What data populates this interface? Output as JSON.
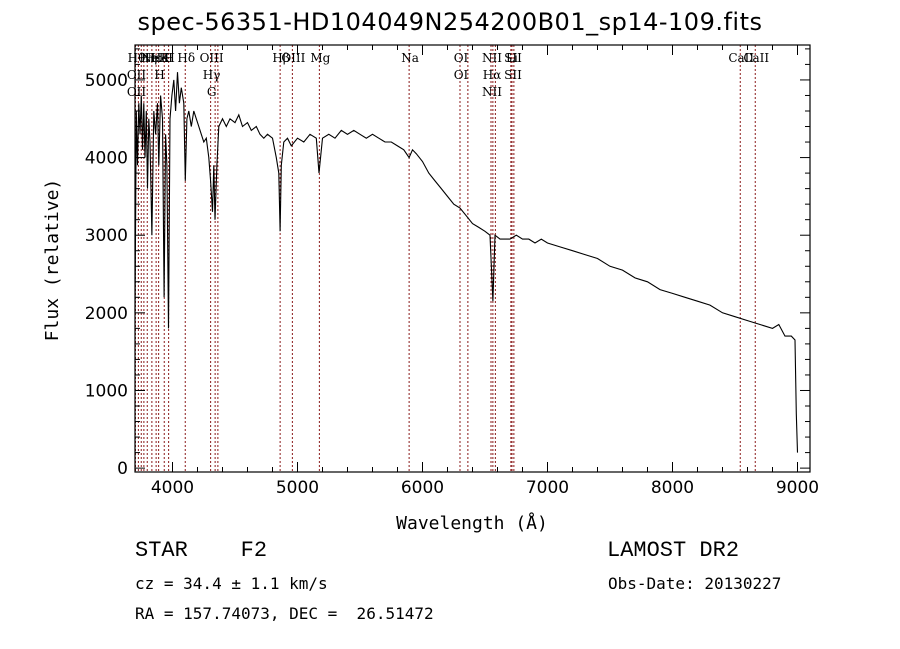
{
  "title": "spec-56351-HD104049N254200B01_sp14-109.fits",
  "info": {
    "object_class": "STAR    F2",
    "survey": "LAMOST DR2",
    "cz": "cz = 34.4 ± 1.1 km/s",
    "obs_date": "Obs-Date: 20130227",
    "radec": "RA = 157.74073, DEC =  26.51472"
  },
  "chart_data": {
    "type": "line",
    "title": "spec-56351-HD104049N254200B01_sp14-109.fits",
    "xlabel": "Wavelength (Å)",
    "ylabel": "Flux (relative)",
    "xlim": [
      3700,
      9100
    ],
    "ylim": [
      -50,
      5450
    ],
    "xticks": [
      4000,
      5000,
      6000,
      7000,
      8000,
      9000
    ],
    "yticks": [
      0,
      1000,
      2000,
      3000,
      4000,
      5000
    ],
    "grid": false,
    "series": [
      {
        "points": [
          [
            3700,
            2000
          ],
          [
            3710,
            4600
          ],
          [
            3720,
            3900
          ],
          [
            3730,
            4700
          ],
          [
            3740,
            4300
          ],
          [
            3750,
            4800
          ],
          [
            3760,
            4100
          ],
          [
            3770,
            4700
          ],
          [
            3780,
            4000
          ],
          [
            3790,
            4600
          ],
          [
            3800,
            3600
          ],
          [
            3810,
            4500
          ],
          [
            3820,
            4200
          ],
          [
            3835,
            3000
          ],
          [
            3850,
            4600
          ],
          [
            3865,
            4300
          ],
          [
            3880,
            4700
          ],
          [
            3890,
            3900
          ],
          [
            3905,
            4800
          ],
          [
            3920,
            4500
          ],
          [
            3933,
            2200
          ],
          [
            3945,
            4300
          ],
          [
            3955,
            3900
          ],
          [
            3968,
            1800
          ],
          [
            3980,
            4500
          ],
          [
            3995,
            4800
          ],
          [
            4010,
            5000
          ],
          [
            4025,
            4600
          ],
          [
            4040,
            5100
          ],
          [
            4055,
            4700
          ],
          [
            4070,
            4900
          ],
          [
            4090,
            4700
          ],
          [
            4102,
            3700
          ],
          [
            4115,
            4500
          ],
          [
            4130,
            4600
          ],
          [
            4150,
            4400
          ],
          [
            4170,
            4600
          ],
          [
            4190,
            4500
          ],
          [
            4210,
            4400
          ],
          [
            4230,
            4300
          ],
          [
            4250,
            4200
          ],
          [
            4270,
            4250
          ],
          [
            4290,
            4000
          ],
          [
            4305,
            3700
          ],
          [
            4320,
            3300
          ],
          [
            4330,
            3900
          ],
          [
            4340,
            3200
          ],
          [
            4355,
            3900
          ],
          [
            4370,
            4400
          ],
          [
            4400,
            4500
          ],
          [
            4430,
            4400
          ],
          [
            4460,
            4500
          ],
          [
            4500,
            4450
          ],
          [
            4530,
            4550
          ],
          [
            4560,
            4400
          ],
          [
            4600,
            4450
          ],
          [
            4630,
            4350
          ],
          [
            4670,
            4400
          ],
          [
            4700,
            4300
          ],
          [
            4730,
            4250
          ],
          [
            4760,
            4300
          ],
          [
            4800,
            4250
          ],
          [
            4830,
            4000
          ],
          [
            4850,
            3800
          ],
          [
            4861,
            3050
          ],
          [
            4870,
            3900
          ],
          [
            4890,
            4200
          ],
          [
            4920,
            4250
          ],
          [
            4950,
            4150
          ],
          [
            5000,
            4250
          ],
          [
            5050,
            4200
          ],
          [
            5100,
            4300
          ],
          [
            5150,
            4250
          ],
          [
            5172,
            3800
          ],
          [
            5200,
            4250
          ],
          [
            5250,
            4300
          ],
          [
            5300,
            4250
          ],
          [
            5350,
            4350
          ],
          [
            5400,
            4300
          ],
          [
            5450,
            4350
          ],
          [
            5500,
            4300
          ],
          [
            5550,
            4250
          ],
          [
            5600,
            4300
          ],
          [
            5650,
            4250
          ],
          [
            5700,
            4200
          ],
          [
            5750,
            4200
          ],
          [
            5800,
            4150
          ],
          [
            5850,
            4100
          ],
          [
            5893,
            4000
          ],
          [
            5920,
            4100
          ],
          [
            5950,
            4050
          ],
          [
            6000,
            3950
          ],
          [
            6050,
            3800
          ],
          [
            6100,
            3700
          ],
          [
            6150,
            3600
          ],
          [
            6200,
            3500
          ],
          [
            6250,
            3400
          ],
          [
            6300,
            3350
          ],
          [
            6350,
            3250
          ],
          [
            6400,
            3150
          ],
          [
            6450,
            3100
          ],
          [
            6500,
            3050
          ],
          [
            6540,
            3000
          ],
          [
            6563,
            2150
          ],
          [
            6580,
            3000
          ],
          [
            6620,
            2950
          ],
          [
            6660,
            2950
          ],
          [
            6700,
            2950
          ],
          [
            6750,
            3000
          ],
          [
            6800,
            2950
          ],
          [
            6850,
            2950
          ],
          [
            6900,
            2900
          ],
          [
            6950,
            2950
          ],
          [
            7000,
            2900
          ],
          [
            7100,
            2850
          ],
          [
            7200,
            2800
          ],
          [
            7300,
            2750
          ],
          [
            7400,
            2700
          ],
          [
            7500,
            2600
          ],
          [
            7600,
            2550
          ],
          [
            7700,
            2450
          ],
          [
            7800,
            2400
          ],
          [
            7900,
            2300
          ],
          [
            8000,
            2250
          ],
          [
            8100,
            2200
          ],
          [
            8200,
            2150
          ],
          [
            8300,
            2100
          ],
          [
            8400,
            2000
          ],
          [
            8500,
            1950
          ],
          [
            8600,
            1900
          ],
          [
            8700,
            1850
          ],
          [
            8800,
            1800
          ],
          [
            8850,
            1850
          ],
          [
            8900,
            1700
          ],
          [
            8950,
            1700
          ],
          [
            8980,
            1650
          ],
          [
            8990,
            700
          ],
          [
            9000,
            200
          ]
        ]
      }
    ],
    "lines": [
      {
        "wl": 3704,
        "labels": [
          "Hθ",
          "OII",
          "OII"
        ]
      },
      {
        "wl": 3727,
        "labels": []
      },
      {
        "wl": 3750,
        "labels": []
      },
      {
        "wl": 3771,
        "labels": []
      },
      {
        "wl": 3798,
        "labels": [
          "Hη"
        ]
      },
      {
        "wl": 3835,
        "labels": [
          "Hε"
        ]
      },
      {
        "wl": 3869,
        "labels": [
          "NeIII"
        ]
      },
      {
        "wl": 3889,
        "labels": [
          "He",
          "H"
        ]
      },
      {
        "wl": 3934,
        "labels": [
          "K"
        ]
      },
      {
        "wl": 3969,
        "labels": [
          "H"
        ]
      },
      {
        "wl": 4102,
        "labels": [
          "Hδ"
        ]
      },
      {
        "wl": 4305,
        "labels": [
          "OIII",
          "Hγ",
          "G"
        ]
      },
      {
        "wl": 4341,
        "labels": []
      },
      {
        "wl": 4363,
        "labels": []
      },
      {
        "wl": 4861,
        "labels": [
          "Hβ"
        ]
      },
      {
        "wl": 4959,
        "labels": [
          "OIII"
        ]
      },
      {
        "wl": 5175,
        "labels": [
          "Mg"
        ]
      },
      {
        "wl": 5893,
        "labels": [
          "Na"
        ]
      },
      {
        "wl": 6300,
        "labels": [
          "OI",
          "OI"
        ]
      },
      {
        "wl": 6363,
        "labels": []
      },
      {
        "wl": 6548,
        "labels": [
          "NII",
          "Hα",
          "NII"
        ]
      },
      {
        "wl": 6563,
        "labels": []
      },
      {
        "wl": 6583,
        "labels": []
      },
      {
        "wl": 6707,
        "labels": [
          "Li"
        ]
      },
      {
        "wl": 6716,
        "labels": [
          "SII",
          "SII"
        ]
      },
      {
        "wl": 6731,
        "labels": []
      },
      {
        "wl": 8542,
        "labels": [
          "CaII"
        ]
      },
      {
        "wl": 8662,
        "labels": [
          "CaII"
        ]
      }
    ]
  }
}
